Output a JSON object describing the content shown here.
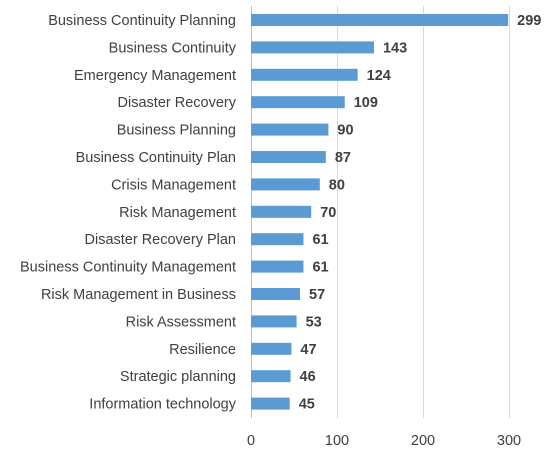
{
  "chart_data": {
    "type": "bar",
    "orientation": "horizontal",
    "categories": [
      "Business Continuity Planning",
      "Business Continuity",
      "Emergency Management",
      "Disaster Recovery",
      "Business Planning",
      "Business Continuity Plan",
      "Crisis Management",
      "Risk Management",
      "Disaster Recovery Plan",
      "Business Continuity Management",
      "Risk Management in Business",
      "Risk Assessment",
      "Resilience",
      "Strategic planning",
      "Information technology"
    ],
    "values": [
      299,
      143,
      124,
      109,
      90,
      87,
      80,
      70,
      61,
      61,
      57,
      53,
      47,
      46,
      45
    ],
    "xlim": [
      0,
      300
    ],
    "xticks": [
      0,
      100,
      200,
      300
    ],
    "grid": "vertical",
    "data_labels": true,
    "bar_color": "#5b9bd5",
    "title": "",
    "xlabel": "",
    "ylabel": ""
  }
}
